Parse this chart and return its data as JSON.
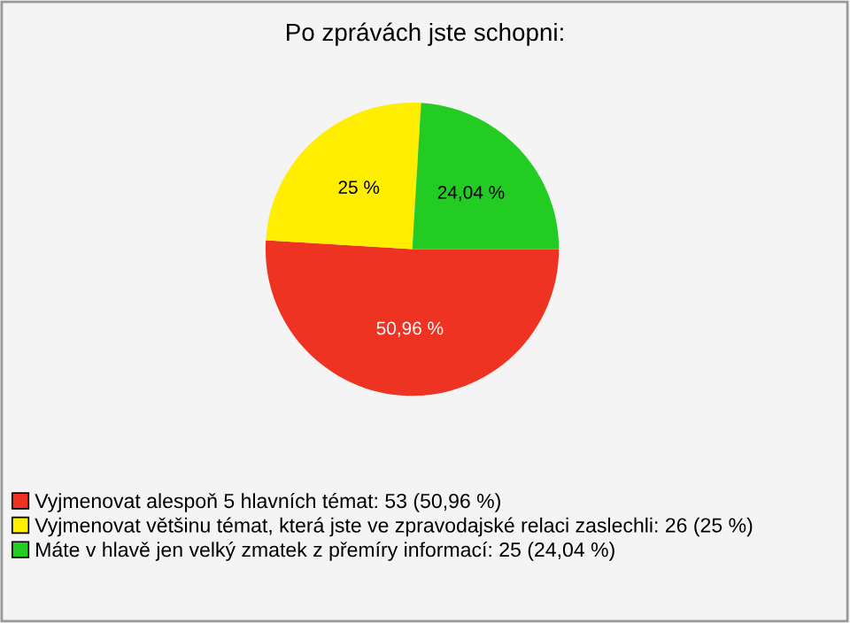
{
  "chart_data": {
    "type": "pie",
    "title": "Po zprávách jste schopni:",
    "categories": [
      "Vyjmenovat alespoň 5 hlavních témat: 53 (50,96 %)",
      "Vyjmenovat většinu témat, která jste ve zpravodajské relaci zaslechli: 26 (25 %)",
      "Máte v hlavě jen velký zmatek z přemíry informací: 25 (24,04 %)"
    ],
    "values": [
      50.96,
      25,
      24.04
    ],
    "value_labels": [
      "50,96 %",
      "25 %",
      "24,04 %"
    ],
    "colors": [
      "#ee3322",
      "#ffee00",
      "#22cc22"
    ],
    "legend": "bottom"
  }
}
